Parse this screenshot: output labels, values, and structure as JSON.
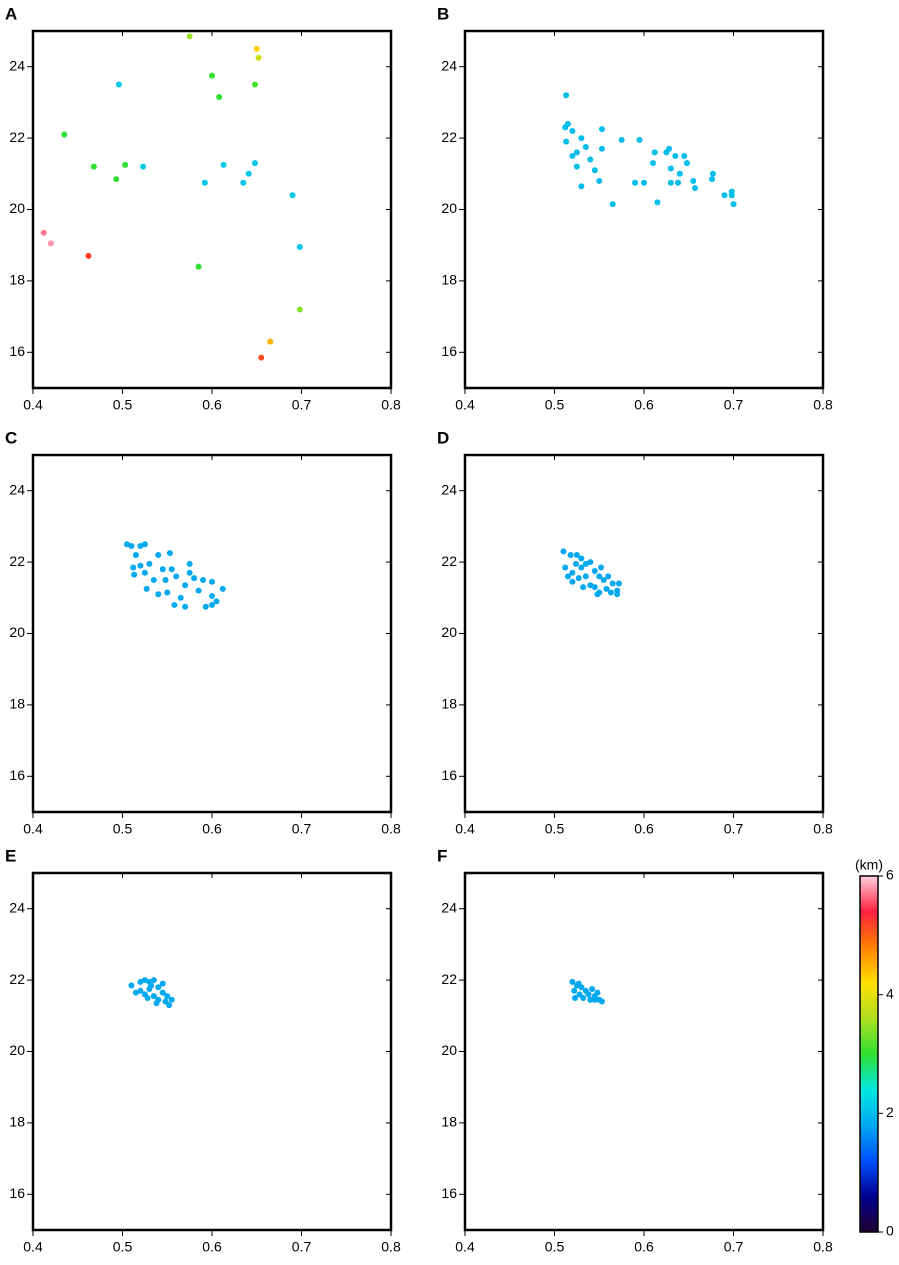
{
  "chart_data": [
    {
      "type": "scatter",
      "label": "A",
      "x": [
        0.575,
        0.65,
        0.652,
        0.6,
        0.608,
        0.648,
        0.496,
        0.435,
        0.468,
        0.503,
        0.523,
        0.493,
        0.613,
        0.648,
        0.641,
        0.635,
        0.592,
        0.69,
        0.412,
        0.42,
        0.462,
        0.585,
        0.698,
        0.698,
        0.665,
        0.655
      ],
      "y": [
        24.85,
        24.5,
        24.25,
        23.75,
        23.15,
        23.5,
        23.5,
        22.1,
        21.2,
        21.25,
        21.2,
        20.85,
        21.25,
        21.3,
        21.0,
        20.75,
        20.75,
        20.4,
        19.35,
        19.05,
        18.7,
        18.4,
        18.95,
        17.2,
        16.3,
        15.85
      ],
      "depth": [
        3.5,
        4.3,
        3.8,
        3.0,
        3.0,
        3.1,
        2.1,
        3.0,
        3.0,
        3.0,
        2.1,
        3.0,
        2.1,
        2.1,
        2.1,
        2.1,
        2.1,
        2.1,
        5.7,
        5.8,
        5.2,
        3.0,
        2.1,
        3.4,
        4.5,
        5.1
      ],
      "xlim": [
        0.4,
        0.8
      ],
      "xticks": [
        0.4,
        0.5,
        0.6,
        0.7,
        0.8
      ],
      "ylim": [
        15,
        25
      ],
      "yticks": [
        16,
        18,
        20,
        22,
        24
      ]
    },
    {
      "type": "scatter",
      "label": "B",
      "x": [
        0.513,
        0.515,
        0.512,
        0.52,
        0.513,
        0.53,
        0.525,
        0.52,
        0.525,
        0.535,
        0.54,
        0.545,
        0.553,
        0.553,
        0.55,
        0.53,
        0.565,
        0.575,
        0.59,
        0.595,
        0.6,
        0.61,
        0.612,
        0.615,
        0.625,
        0.628,
        0.63,
        0.63,
        0.635,
        0.638,
        0.64,
        0.645,
        0.648,
        0.655,
        0.657,
        0.676,
        0.677,
        0.69,
        0.698,
        0.7,
        0.698
      ],
      "y": [
        23.2,
        22.4,
        22.3,
        22.2,
        21.9,
        22.0,
        21.6,
        21.5,
        21.2,
        21.75,
        21.4,
        21.1,
        22.25,
        21.7,
        20.8,
        20.65,
        20.15,
        21.95,
        20.75,
        21.95,
        20.75,
        21.3,
        21.6,
        20.2,
        21.6,
        21.7,
        21.15,
        20.75,
        21.5,
        20.75,
        21.0,
        21.5,
        21.3,
        20.8,
        20.6,
        20.85,
        21.0,
        20.4,
        20.5,
        20.15,
        20.4
      ],
      "depth": [
        2.0,
        2.0,
        2.0,
        2.0,
        2.0,
        2.0,
        2.0,
        2.0,
        2.0,
        2.0,
        2.0,
        2.0,
        2.0,
        2.0,
        2.0,
        2.0,
        2.0,
        2.0,
        2.0,
        2.0,
        2.0,
        2.0,
        2.0,
        2.0,
        2.0,
        2.0,
        2.0,
        2.0,
        2.0,
        2.0,
        2.0,
        2.0,
        2.0,
        2.0,
        2.0,
        2.0,
        2.0,
        2.0,
        2.0,
        2.0,
        2.0
      ],
      "xlim": [
        0.4,
        0.8
      ],
      "xticks": [
        0.4,
        0.5,
        0.6,
        0.7,
        0.8
      ],
      "ylim": [
        15,
        25
      ],
      "yticks": [
        16,
        18,
        20,
        22,
        24
      ]
    },
    {
      "type": "scatter",
      "label": "C",
      "x": [
        0.505,
        0.51,
        0.52,
        0.525,
        0.515,
        0.512,
        0.52,
        0.525,
        0.513,
        0.53,
        0.535,
        0.527,
        0.54,
        0.545,
        0.54,
        0.548,
        0.553,
        0.555,
        0.56,
        0.55,
        0.558,
        0.57,
        0.575,
        0.575,
        0.58,
        0.57,
        0.59,
        0.585,
        0.593,
        0.6,
        0.6,
        0.605,
        0.6,
        0.612,
        0.565
      ],
      "y": [
        22.5,
        22.45,
        22.45,
        22.5,
        22.2,
        21.85,
        21.9,
        21.7,
        21.65,
        21.95,
        21.5,
        21.25,
        22.2,
        21.8,
        21.1,
        21.5,
        22.25,
        21.8,
        21.6,
        21.15,
        20.8,
        21.35,
        21.95,
        21.7,
        21.55,
        20.75,
        21.5,
        21.2,
        20.75,
        21.45,
        21.05,
        20.9,
        20.8,
        21.25,
        21.0
      ],
      "depth": [
        1.8,
        1.8,
        1.8,
        1.8,
        1.8,
        1.8,
        1.8,
        1.8,
        1.8,
        1.8,
        1.8,
        1.8,
        1.8,
        1.8,
        1.8,
        1.8,
        1.8,
        1.8,
        1.8,
        1.8,
        1.8,
        1.8,
        1.8,
        1.8,
        1.8,
        1.8,
        1.8,
        1.8,
        1.8,
        1.8,
        1.8,
        1.8,
        1.8,
        1.8,
        1.8
      ],
      "xlim": [
        0.4,
        0.8
      ],
      "xticks": [
        0.4,
        0.5,
        0.6,
        0.7,
        0.8
      ],
      "ylim": [
        15,
        25
      ],
      "yticks": [
        16,
        18,
        20,
        22,
        24
      ]
    },
    {
      "type": "scatter",
      "label": "D",
      "x": [
        0.51,
        0.518,
        0.525,
        0.53,
        0.512,
        0.52,
        0.515,
        0.53,
        0.527,
        0.52,
        0.535,
        0.54,
        0.535,
        0.545,
        0.54,
        0.55,
        0.545,
        0.552,
        0.555,
        0.548,
        0.56,
        0.558,
        0.565,
        0.563,
        0.57,
        0.572,
        0.57,
        0.524,
        0.532,
        0.55
      ],
      "y": [
        22.3,
        22.2,
        22.2,
        22.1,
        21.85,
        21.7,
        21.6,
        21.85,
        21.55,
        21.45,
        21.95,
        22.0,
        21.6,
        21.75,
        21.35,
        21.6,
        21.3,
        21.85,
        21.5,
        21.1,
        21.6,
        21.25,
        21.4,
        21.15,
        21.2,
        21.4,
        21.1,
        21.95,
        21.3,
        21.15
      ],
      "depth": [
        1.8,
        1.8,
        1.8,
        1.8,
        1.8,
        1.8,
        1.8,
        1.8,
        1.8,
        1.8,
        1.8,
        1.8,
        1.8,
        1.8,
        1.8,
        1.8,
        1.8,
        1.8,
        1.8,
        1.8,
        1.8,
        1.8,
        1.8,
        1.8,
        1.8,
        1.8,
        1.8,
        1.8,
        1.8,
        1.8
      ],
      "xlim": [
        0.4,
        0.8
      ],
      "xticks": [
        0.4,
        0.5,
        0.6,
        0.7,
        0.8
      ],
      "ylim": [
        15,
        25
      ],
      "yticks": [
        16,
        18,
        20,
        22,
        24
      ]
    },
    {
      "type": "scatter",
      "label": "E",
      "x": [
        0.51,
        0.52,
        0.525,
        0.53,
        0.535,
        0.52,
        0.525,
        0.53,
        0.535,
        0.528,
        0.54,
        0.54,
        0.545,
        0.538,
        0.55,
        0.548,
        0.555,
        0.552,
        0.515,
        0.532,
        0.545
      ],
      "y": [
        21.85,
        21.95,
        22.0,
        21.95,
        22.0,
        21.7,
        21.6,
        21.75,
        21.55,
        21.5,
        21.8,
        21.45,
        21.65,
        21.35,
        21.55,
        21.4,
        21.45,
        21.3,
        21.65,
        21.85,
        21.9
      ],
      "depth": [
        1.8,
        1.8,
        1.8,
        1.8,
        1.8,
        1.8,
        1.8,
        1.8,
        1.8,
        1.8,
        1.8,
        1.8,
        1.8,
        1.8,
        1.8,
        1.8,
        1.8,
        1.8,
        1.8,
        1.8,
        1.8
      ],
      "xlim": [
        0.4,
        0.8
      ],
      "xticks": [
        0.4,
        0.5,
        0.6,
        0.7,
        0.8
      ],
      "ylim": [
        15,
        25
      ],
      "yticks": [
        16,
        18,
        20,
        22,
        24
      ]
    },
    {
      "type": "scatter",
      "label": "F",
      "x": [
        0.52,
        0.525,
        0.522,
        0.528,
        0.523,
        0.53,
        0.535,
        0.532,
        0.538,
        0.542,
        0.545,
        0.54,
        0.548,
        0.55,
        0.553,
        0.545,
        0.527
      ],
      "y": [
        21.95,
        21.85,
        21.7,
        21.6,
        21.5,
        21.8,
        21.7,
        21.5,
        21.6,
        21.75,
        21.55,
        21.45,
        21.65,
        21.45,
        21.4,
        21.45,
        21.9
      ],
      "depth": [
        1.8,
        1.8,
        1.8,
        1.8,
        1.8,
        1.8,
        1.8,
        1.8,
        1.8,
        1.8,
        1.8,
        1.8,
        1.8,
        1.8,
        1.8,
        1.8,
        1.8
      ],
      "xlim": [
        0.4,
        0.8
      ],
      "xticks": [
        0.4,
        0.5,
        0.6,
        0.7,
        0.8
      ],
      "ylim": [
        15,
        25
      ],
      "yticks": [
        16,
        18,
        20,
        22,
        24
      ]
    }
  ],
  "colorbar": {
    "label": "(km)",
    "zlim": [
      0,
      6
    ],
    "ticks": [
      0,
      2,
      4,
      6
    ],
    "colormap": [
      "#200030",
      "#000090",
      "#0050ff",
      "#00a8f0",
      "#00e8e0",
      "#30e030",
      "#b0e020",
      "#ffe000",
      "#ff8000",
      "#ff2040",
      "#ffd0e0"
    ]
  }
}
